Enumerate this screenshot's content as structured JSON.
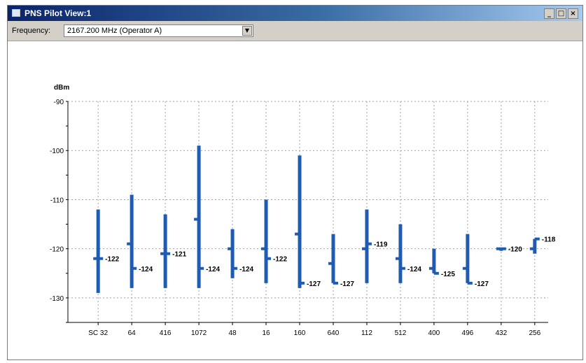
{
  "window": {
    "title": "PNS Pilot View:1",
    "buttons": {
      "minimize": "_",
      "restore": "□",
      "close": "×"
    }
  },
  "toolbar": {
    "frequency_label": "Frequency:",
    "frequency_value": "2167.200 MHz (Operator A)",
    "dropdown_icon": "chevron-down-icon"
  },
  "colors": {
    "bar": "#1f5bb0",
    "grid": "#a0a0a0",
    "axis": "#000000"
  },
  "chart_data": {
    "type": "bar",
    "ylabel": "dBm",
    "ylim": [
      -135,
      -90
    ],
    "yticks": [
      -90,
      -100,
      -110,
      -120,
      -130
    ],
    "grid": true,
    "categories": [
      "SC 32",
      "64",
      "416",
      "1072",
      "48",
      "16",
      "160",
      "640",
      "112",
      "512",
      "400",
      "496",
      "432",
      "256"
    ],
    "series": [
      {
        "low": [
          -129,
          -128,
          -128,
          -128,
          -126,
          -127,
          -128,
          -127,
          -127,
          -127,
          -125,
          -127,
          -120,
          -121
        ],
        "high": [
          -112,
          -109,
          -113,
          -99,
          -116,
          -110,
          -101,
          -117,
          -112,
          -115,
          -120,
          -117,
          -120,
          -118
        ],
        "marker_left": [
          -122,
          -119,
          -121,
          -114,
          -120,
          -120,
          -117,
          -123,
          -120,
          -122,
          -124,
          -124,
          -120,
          -120
        ],
        "marker_right": [
          -122,
          -124,
          -121,
          -124,
          -124,
          -122,
          -127,
          -127,
          -119,
          -124,
          -125,
          -127,
          -120,
          -118
        ],
        "labels": [
          "-122",
          "-124",
          "-121",
          "-124",
          "-124",
          "-122",
          "-127",
          "-127",
          "-119",
          "-124",
          "-125",
          "-127",
          "-120",
          "-118"
        ]
      }
    ]
  }
}
